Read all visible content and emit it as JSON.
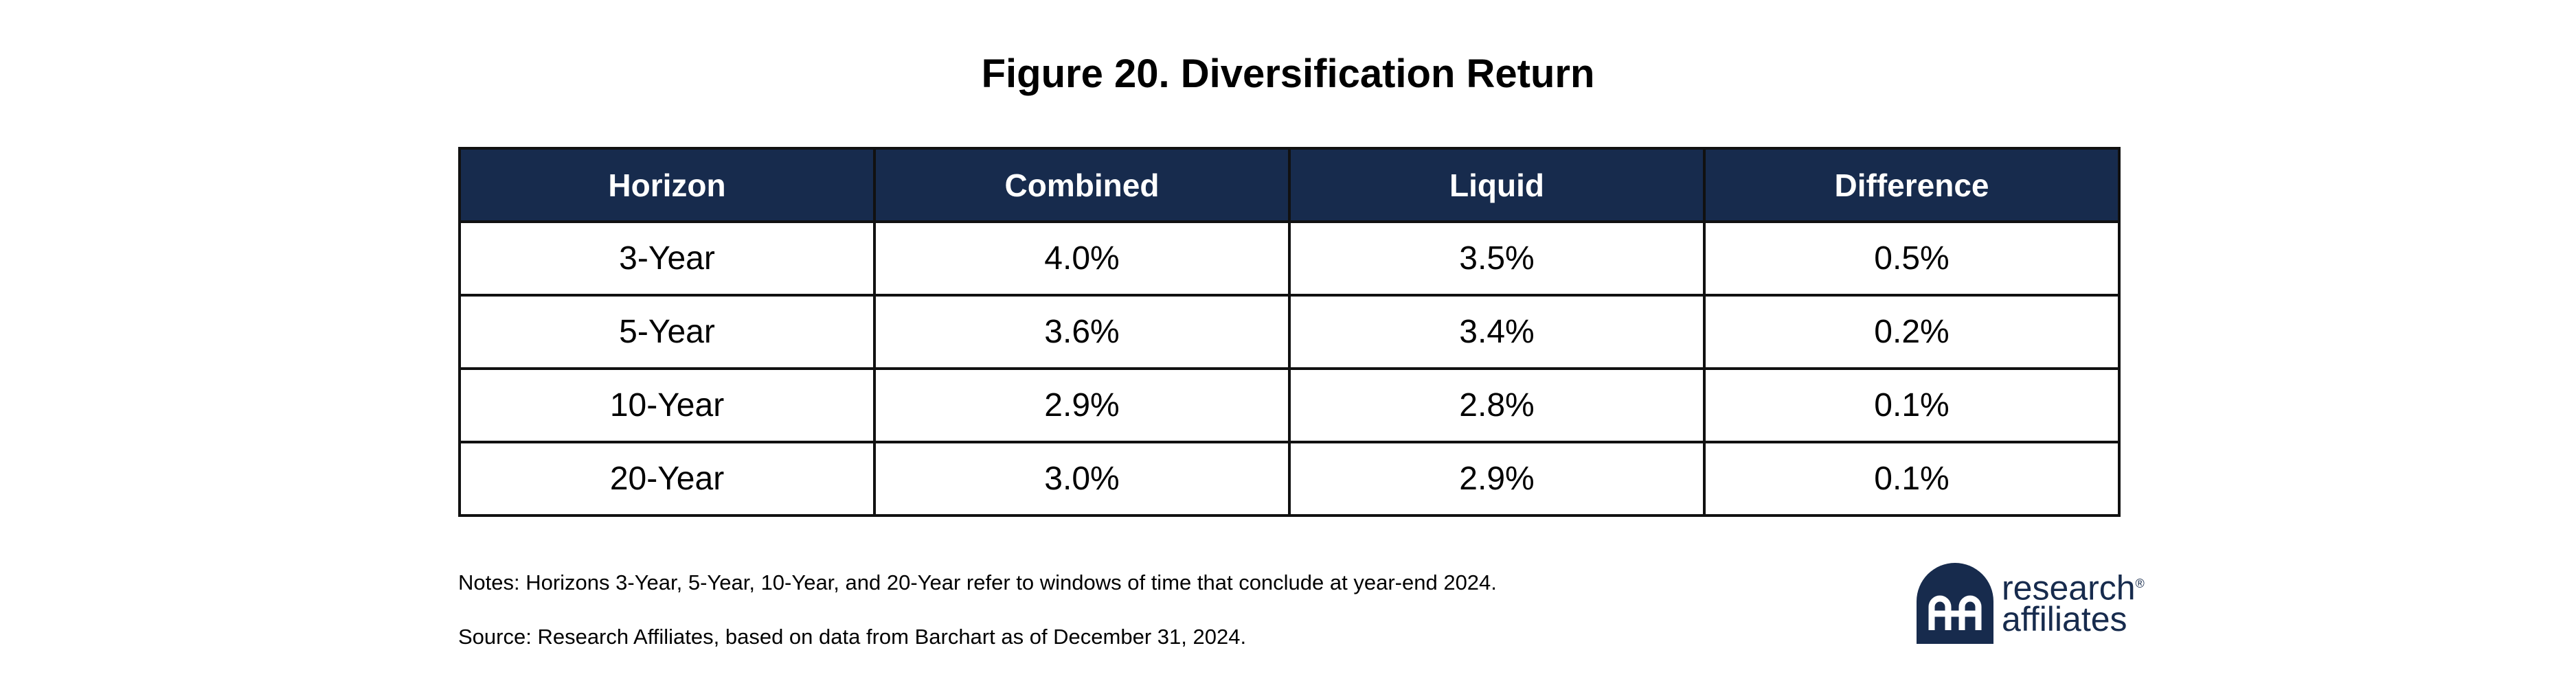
{
  "chart_data": {
    "type": "table",
    "title": "Figure 20. Diversification Return",
    "columns": [
      "Horizon",
      "Combined",
      "Liquid",
      "Difference"
    ],
    "rows": [
      [
        "3-Year",
        "4.0%",
        "3.5%",
        "0.5%"
      ],
      [
        "5-Year",
        "3.6%",
        "3.4%",
        "0.2%"
      ],
      [
        "10-Year",
        "2.9%",
        "2.8%",
        "0.1%"
      ],
      [
        "20-Year",
        "3.0%",
        "2.9%",
        "0.1%"
      ]
    ]
  },
  "notes": {
    "notes_text": "Notes: Horizons 3-Year, 5-Year, 10-Year, and 20-Year refer to windows of time that conclude at year-end 2024.",
    "source_text": "Source: Research Affiliates, based on data from Barchart as of December 31, 2024."
  },
  "logo": {
    "line1": "research",
    "trademark": "®",
    "line2": "affiliates",
    "color": "#172b4d"
  },
  "colors": {
    "header_background": "#172b4d",
    "header_text": "#ffffff",
    "border": "#111111"
  }
}
